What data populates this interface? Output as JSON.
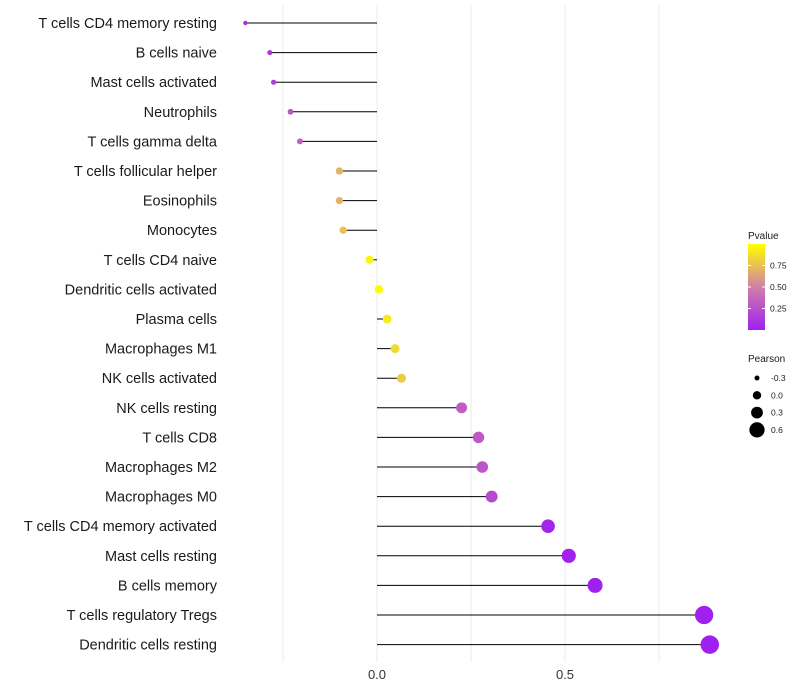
{
  "chart_data": {
    "type": "lollipop",
    "title": "",
    "xlabel": "",
    "ylabel": "",
    "xlim": [
      -0.35,
      0.9
    ],
    "x_ticks": [
      0.0,
      0.5
    ],
    "x_tick_labels": [
      "0.0",
      "0.5"
    ],
    "grid": "vertical gridlines at every 0.25",
    "categories": [
      "T cells CD4 memory resting",
      "B cells naive",
      "Mast cells activated",
      "Neutrophils",
      "T cells gamma delta",
      "T cells follicular helper",
      "Eosinophils",
      "Monocytes",
      "T cells CD4 naive",
      "Dendritic cells activated",
      "Plasma cells",
      "Macrophages M1",
      "NK cells activated",
      "NK cells resting",
      "T cells CD8",
      "Macrophages M2",
      "Macrophages M0",
      "T cells CD4 memory activated",
      "Mast cells resting",
      "B cells memory",
      "T cells regulatory  Tregs",
      "Dendritic cells resting"
    ],
    "pearson": [
      -0.35,
      -0.285,
      -0.275,
      -0.23,
      -0.205,
      -0.1,
      -0.1,
      -0.09,
      -0.02,
      0.005,
      0.027,
      0.048,
      0.065,
      0.225,
      0.27,
      0.28,
      0.305,
      0.455,
      0.51,
      0.58,
      0.87,
      0.885
    ],
    "pvalue": [
      0.05,
      0.12,
      0.15,
      0.28,
      0.34,
      0.7,
      0.7,
      0.75,
      0.96,
      0.99,
      0.92,
      0.86,
      0.8,
      0.32,
      0.3,
      0.28,
      0.22,
      0.02,
      0.01,
      0.005,
      0.0,
      0.0
    ],
    "legend": {
      "placement": "right",
      "pvalue": {
        "title": "Pvalue",
        "breaks": [
          0.75,
          0.5,
          0.25
        ],
        "labels": [
          "0.75",
          "0.50",
          "0.25"
        ],
        "range": [
          0,
          1
        ],
        "low_color": "#a020f0",
        "mid_color": "#d080a8",
        "high_color": "#ffff00"
      },
      "pearson": {
        "title": "Pearson",
        "breaks": [
          -0.3,
          0.0,
          0.3,
          0.6
        ],
        "labels": [
          "-0.3",
          "0.0",
          "0.3",
          "0.6"
        ]
      }
    },
    "colors": {
      "stem": "#000000",
      "grid": "#ebebeb"
    }
  }
}
